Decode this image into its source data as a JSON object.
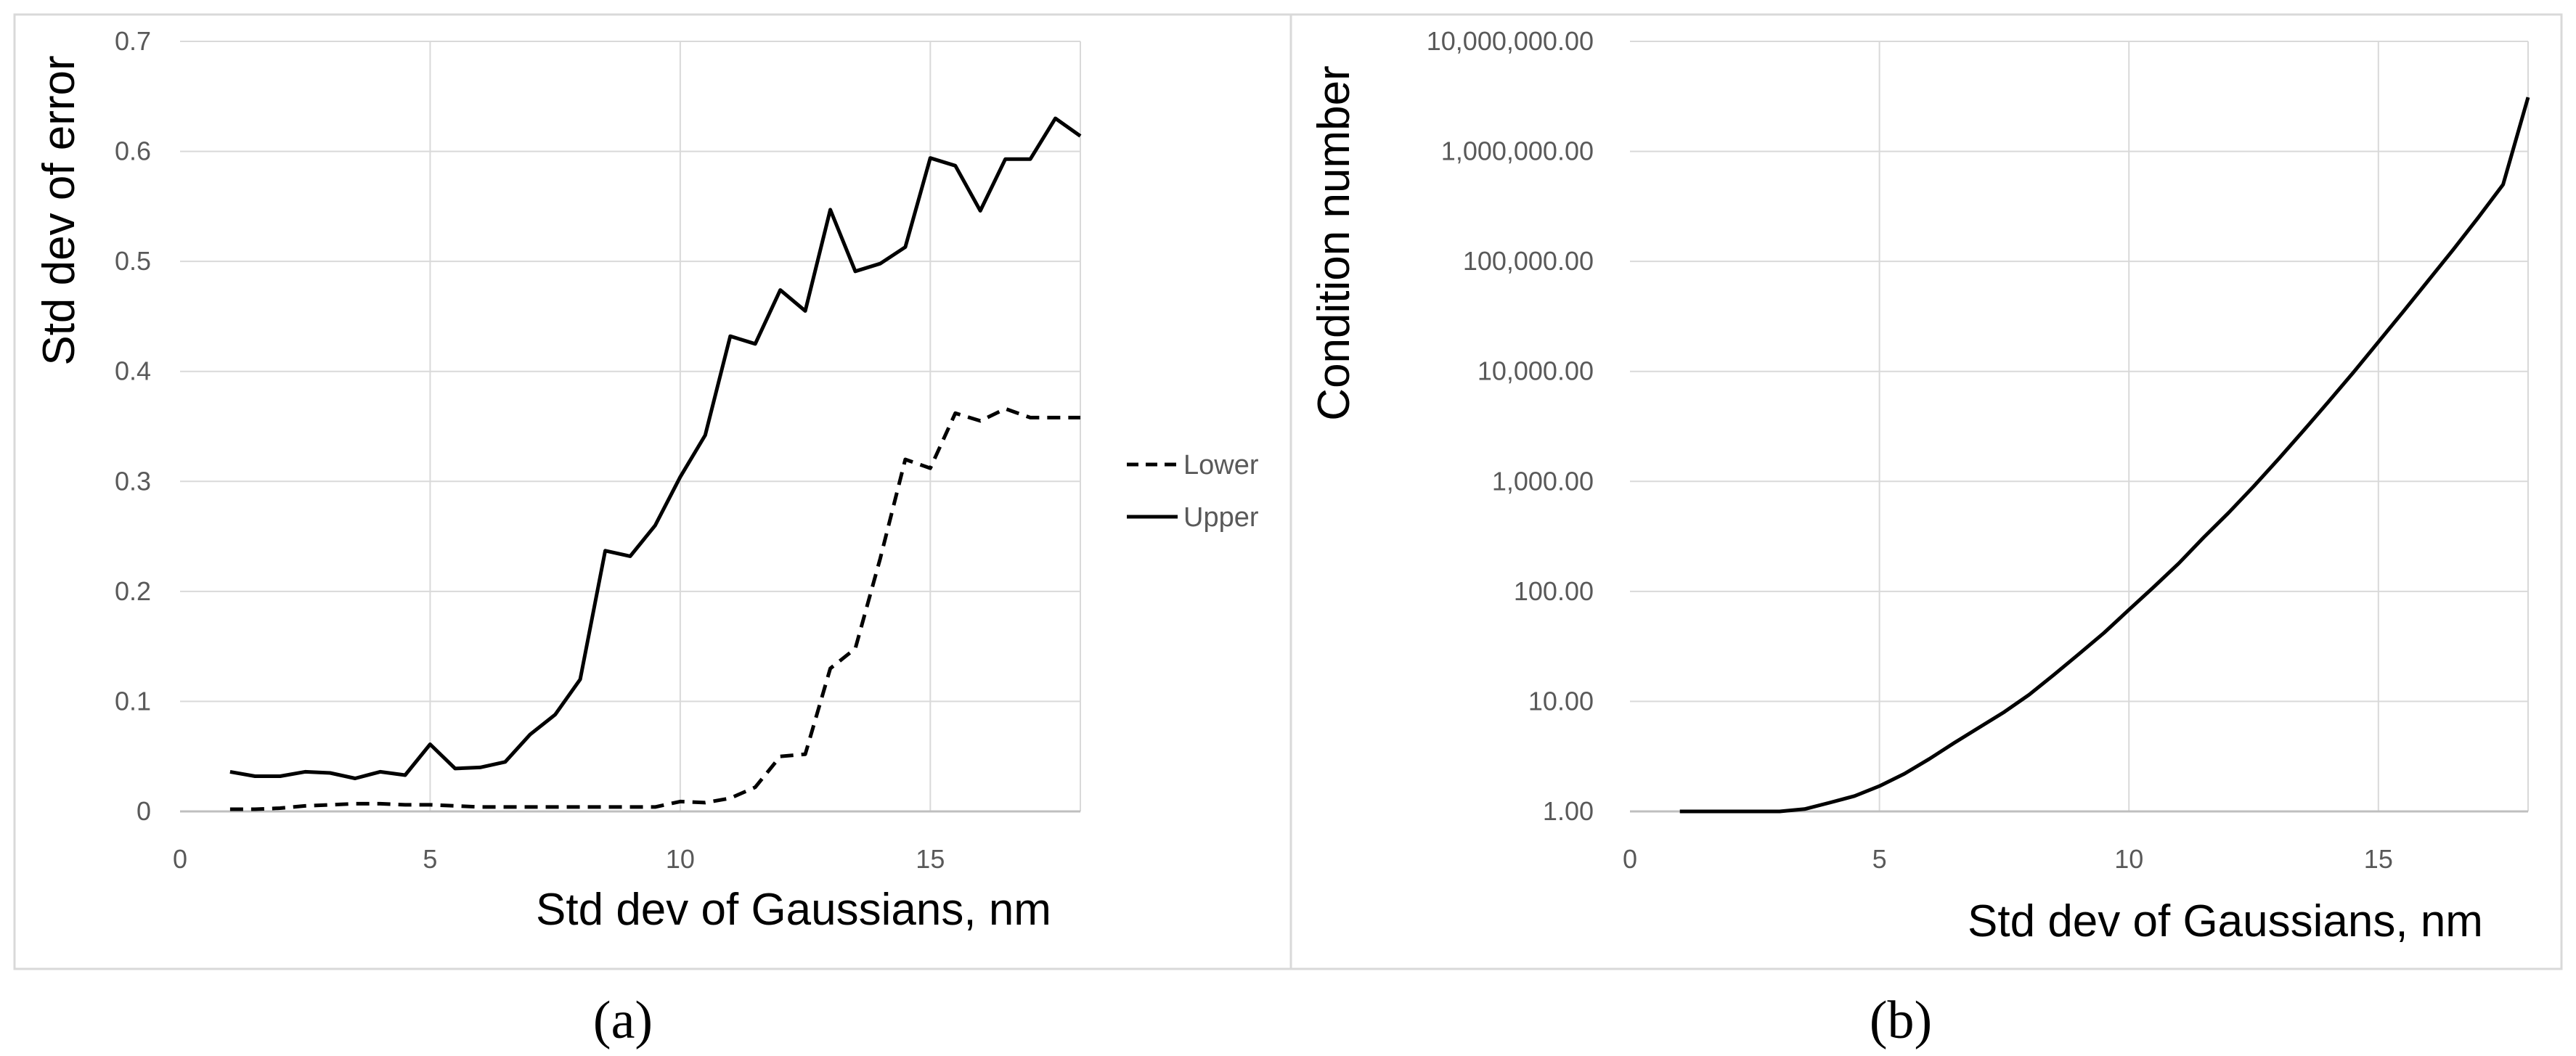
{
  "chart_data": [
    {
      "type": "line",
      "panel_label": "(a)",
      "xlabel": "Std dev of Gaussians, nm",
      "ylabel": "Std dev of error",
      "xlim": [
        0,
        18
      ],
      "ylim": [
        0,
        0.7
      ],
      "x_ticks": [
        "0",
        "5",
        "10",
        "15"
      ],
      "y_ticks": [
        "0",
        "0.1",
        "0.2",
        "0.3",
        "0.4",
        "0.5",
        "0.6",
        "0.7"
      ],
      "grid": true,
      "legend_position": "right",
      "series": [
        {
          "name": "Lower",
          "style": "dashed",
          "x": [
            1,
            1.5,
            2,
            2.5,
            3,
            3.5,
            4,
            4.5,
            5,
            5.5,
            6,
            6.5,
            7,
            7.5,
            8,
            8.5,
            9,
            9.5,
            10,
            10.5,
            11,
            11.5,
            12,
            12.5,
            13,
            13.5,
            14,
            14.5,
            15,
            15.5,
            16,
            16.5,
            17,
            17.5,
            18
          ],
          "values": [
            0.002,
            0.002,
            0.003,
            0.005,
            0.006,
            0.007,
            0.007,
            0.006,
            0.006,
            0.005,
            0.004,
            0.004,
            0.004,
            0.004,
            0.004,
            0.004,
            0.004,
            0.004,
            0.009,
            0.008,
            0.012,
            0.022,
            0.05,
            0.052,
            0.13,
            0.148,
            0.23,
            0.32,
            0.312,
            0.362,
            0.355,
            0.366,
            0.358,
            0.358,
            0.358
          ]
        },
        {
          "name": "Upper",
          "style": "solid",
          "x": [
            1,
            1.5,
            2,
            2.5,
            3,
            3.5,
            4,
            4.5,
            5,
            5.5,
            6,
            6.5,
            7,
            7.5,
            8,
            8.5,
            9,
            9.5,
            10,
            10.5,
            11,
            11.5,
            12,
            12.5,
            13,
            13.5,
            14,
            14.5,
            15,
            15.5,
            16,
            16.5,
            17,
            17.5,
            18
          ],
          "values": [
            0.036,
            0.032,
            0.032,
            0.036,
            0.035,
            0.03,
            0.036,
            0.033,
            0.061,
            0.039,
            0.04,
            0.045,
            0.07,
            0.088,
            0.12,
            0.237,
            0.232,
            0.26,
            0.304,
            0.342,
            0.432,
            0.425,
            0.474,
            0.455,
            0.547,
            0.491,
            0.498,
            0.513,
            0.594,
            0.587,
            0.546,
            0.593,
            0.593,
            0.63,
            0.614
          ]
        }
      ]
    },
    {
      "type": "line",
      "panel_label": "(b)",
      "xlabel": "Std dev of Gaussians, nm",
      "ylabel": "Condition number",
      "xlim": [
        0,
        18
      ],
      "yscale": "log",
      "ylim": [
        1,
        10000000
      ],
      "x_ticks": [
        "0",
        "5",
        "10",
        "15"
      ],
      "y_ticks": [
        "1.00",
        "10.00",
        "100.00",
        "1,000.00",
        "10,000.00",
        "100,000.00",
        "1,000,000.00",
        "10,000,000.00"
      ],
      "grid": true,
      "series": [
        {
          "x": [
            1,
            1.5,
            2,
            2.5,
            3,
            3.5,
            4,
            4.5,
            5,
            5.5,
            6,
            6.5,
            7,
            7.5,
            8,
            8.5,
            9,
            9.5,
            10,
            10.5,
            11,
            11.5,
            12,
            12.5,
            13,
            13.5,
            14,
            14.5,
            15,
            15.5,
            16,
            16.5,
            17,
            17.5,
            18
          ],
          "values": [
            1.0,
            1.0,
            1.0,
            1.0,
            1.0,
            1.05,
            1.2,
            1.38,
            1.7,
            2.2,
            3.0,
            4.2,
            5.8,
            8.0,
            11.5,
            17.5,
            27,
            42,
            68,
            110,
            180,
            310,
            520,
            900,
            1600,
            2900,
            5300,
            9800,
            18500,
            35000,
            67000,
            128000,
            250000,
            500000,
            3100000
          ]
        }
      ]
    }
  ]
}
